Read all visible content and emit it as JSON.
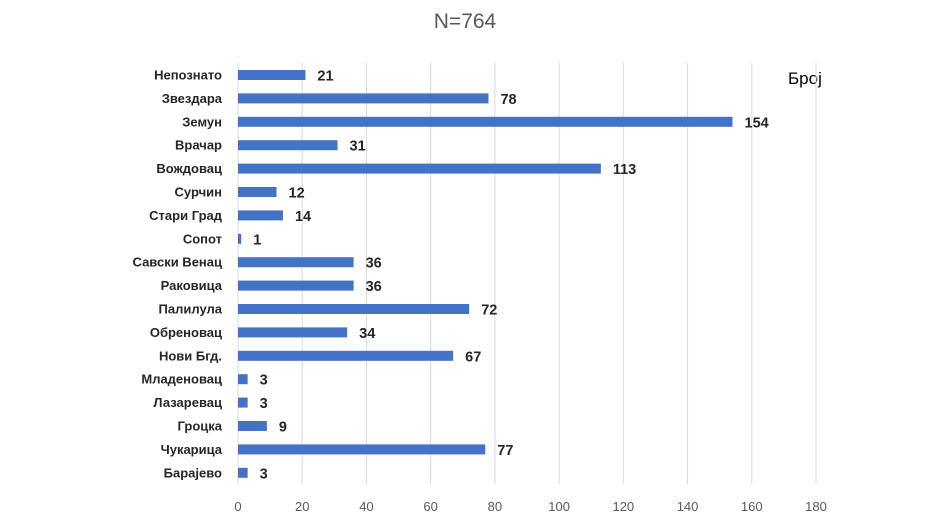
{
  "chart_data": {
    "type": "bar",
    "orientation": "horizontal",
    "title": "N=764",
    "legend": "Број",
    "legend_position": "top-right",
    "color": "#4472c4",
    "grid": true,
    "xlim": [
      0,
      180
    ],
    "xticks": [
      "0",
      "20",
      "40",
      "60",
      "80",
      "100",
      "120",
      "140",
      "160",
      "180"
    ],
    "categories": [
      "Непознато",
      "Звездара",
      "Земун",
      "Врачар",
      "Вождовац",
      "Сурчин",
      "Стари Град",
      "Сопот",
      "Савски  Венац",
      "Раковица",
      "Палилула",
      "Обреновац",
      "Нови Бгд.",
      "Младеновац",
      "Лазаревац",
      "Гроцка",
      "Чукарица",
      "Барајево"
    ],
    "values": [
      21,
      78,
      154,
      31,
      113,
      12,
      14,
      1,
      36,
      36,
      72,
      34,
      67,
      3,
      3,
      9,
      77,
      3
    ]
  }
}
